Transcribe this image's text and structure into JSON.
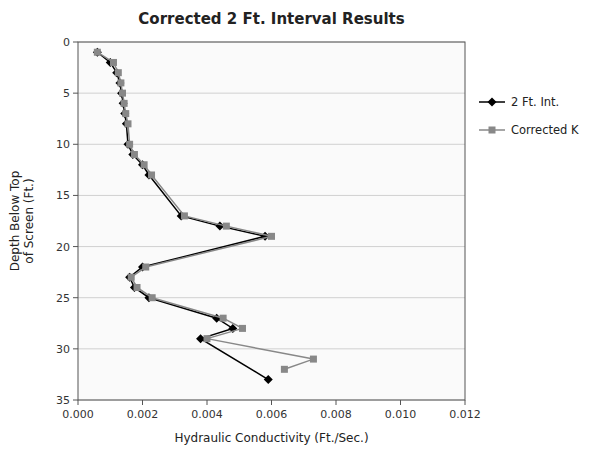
{
  "chart_data": {
    "type": "line",
    "title": "Corrected 2 Ft. Interval Results",
    "x_label": "Hydraulic Conductivity (Ft./Sec.)",
    "y_label": "Depth Below Top\nof Screen (Ft.)",
    "xlim": [
      0.0,
      0.012
    ],
    "ylim": [
      35,
      0
    ],
    "xticks": [
      {
        "value": 0,
        "label": "0.000"
      },
      0.002,
      0.004,
      0.006,
      0.008,
      {
        "value": 0.01,
        "label": "0.010"
      },
      0.012
    ],
    "yticks": [
      0,
      5,
      10,
      15,
      20,
      25,
      30,
      35
    ],
    "grid": "y",
    "legend": "right",
    "series": [
      {
        "name": "2 Ft. Int.",
        "color": "#000000",
        "marker": "diamond",
        "x": [
          0.0006,
          0.001,
          0.0012,
          0.0013,
          0.00135,
          0.0014,
          0.00145,
          0.0015,
          0.00155,
          0.0017,
          0.002,
          0.0022,
          0.0032,
          0.0044,
          0.0058,
          0.002,
          0.0016,
          0.00175,
          0.0022,
          0.0043,
          0.0048,
          0.0038,
          0.0059
        ],
        "values": [
          1,
          2,
          3,
          4,
          5,
          6,
          7,
          8,
          10,
          11,
          12,
          13,
          17,
          18,
          19,
          22,
          23,
          24,
          25,
          27,
          28,
          29,
          33
        ]
      },
      {
        "name": "Corrected K",
        "color": "#888888",
        "marker": "square",
        "x": [
          0.0006,
          0.0011,
          0.00125,
          0.00133,
          0.00138,
          0.00143,
          0.00148,
          0.00155,
          0.0016,
          0.00175,
          0.00205,
          0.00228,
          0.0033,
          0.0046,
          0.006,
          0.0021,
          0.00165,
          0.00183,
          0.0023,
          0.0045,
          0.0051,
          0.004,
          0.0073,
          0.0064
        ],
        "values": [
          1,
          2,
          3,
          4,
          5,
          6,
          7,
          8,
          10,
          11,
          12,
          13,
          17,
          18,
          19,
          22,
          23,
          24,
          25,
          27,
          28,
          29,
          31,
          32
        ]
      }
    ]
  }
}
